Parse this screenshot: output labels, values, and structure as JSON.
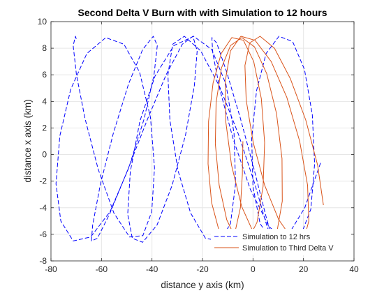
{
  "chart_data": {
    "type": "line",
    "title": "Second Delta V Burn with with Simulation to 12 hours",
    "xlabel": "distance y axis (km)",
    "ylabel": "distance x axis (km)",
    "xlim": [
      -80,
      40
    ],
    "ylim": [
      -8,
      10
    ],
    "xticks": [
      -80,
      -60,
      -40,
      -20,
      0,
      20,
      40
    ],
    "yticks": [
      -8,
      -6,
      -4,
      -2,
      0,
      2,
      4,
      6,
      8,
      10
    ],
    "xtick_labels": [
      "-80",
      "-60",
      "-40",
      "-20",
      "0",
      "20",
      "40"
    ],
    "ytick_labels": [
      "-8",
      "-6",
      "-4",
      "-2",
      "0",
      "2",
      "4",
      "6",
      "8",
      "10"
    ],
    "grid": true,
    "legend_position": "bottom-right",
    "series": [
      {
        "name": "Simulation to 12 hrs",
        "color": "#0000ff",
        "style": "dashed",
        "x": [
          -70.0,
          -70.3,
          -71.2,
          -69.9,
          -66.5,
          -61.3,
          -55.1,
          -48.9,
          -43.6,
          -40.1,
          -39.0,
          -40.6,
          -44.9,
          -51.1,
          -58.3,
          -65.8,
          -72.2,
          -76.5,
          -78.0,
          -76.1,
          -71.2,
          -64.3,
          -56.6,
          -49.2,
          -43.1,
          -39.2,
          -37.9,
          -39.5,
          -43.7,
          -49.3,
          -55.3,
          -60.4,
          -63.5,
          -64.0,
          -61.6,
          -56.6,
          -49.7,
          -41.9,
          -34.4,
          -28.0,
          -23.8,
          -22.1,
          -23.2,
          -26.7,
          -32.0,
          -38.0,
          -43.7,
          -47.8,
          -49.6,
          -48.6,
          -44.8,
          -38.8,
          -31.3,
          -23.5,
          -16.3,
          -10.7,
          -7.5,
          -6.9,
          -8.9,
          -13.1,
          -18.8,
          -24.7,
          -29.7,
          -32.9,
          -33.7,
          -31.8,
          -27.2,
          -20.7,
          -13.2,
          -5.7,
          0.7,
          5.4,
          7.7,
          7.4,
          4.8,
          0.3,
          -5.1,
          -10.4,
          -14.4,
          -16.3,
          -15.9,
          -13.0,
          -7.9,
          -1.1,
          6.3,
          13.3,
          19.1,
          22.9,
          24.4,
          23.5,
          20.4,
          15.7,
          10.3,
          5.2,
          1.4,
          -0.5,
          0.0,
          2.8,
          7.6,
          13.8,
          20.5,
          26.8
        ],
        "y": [
          8.7,
          8.9,
          8.2,
          6.0,
          2.7,
          -1.1,
          -4.4,
          -6.2,
          -6.1,
          -4.3,
          -1.0,
          2.8,
          6.2,
          8.3,
          8.8,
          7.6,
          4.9,
          1.4,
          -2.2,
          -5.0,
          -6.5,
          -6.2,
          -4.3,
          -1.0,
          2.7,
          6.0,
          8.2,
          8.9,
          7.9,
          5.3,
          1.6,
          -2.2,
          -5.3,
          -6.5,
          -6.3,
          -4.4,
          -1.2,
          2.6,
          6.0,
          8.3,
          8.9,
          7.8,
          5.2,
          1.5,
          -2.3,
          -5.3,
          -6.6,
          -6.3,
          -4.5,
          -1.3,
          2.5,
          5.9,
          8.2,
          8.9,
          7.9,
          5.3,
          1.6,
          -2.2,
          -5.2,
          -6.5,
          -6.3,
          -4.4,
          -1.2,
          2.6,
          6.0,
          8.3,
          8.9,
          7.8,
          5.1,
          1.5,
          -2.2,
          -5.3,
          -6.5,
          -6.2,
          -4.4,
          -1.0,
          2.8,
          6.2,
          8.4,
          8.8,
          7.6,
          4.8,
          1.2,
          -2.6,
          -5.4,
          -6.6,
          -6.0,
          -4.1,
          -0.7,
          3.0,
          6.4,
          8.5,
          8.9,
          7.6,
          4.8,
          1.2,
          -2.4,
          -5.2,
          -6.5,
          -6.1,
          -4.0,
          -0.6
        ]
      },
      {
        "name": "Simulation to Third Delta V",
        "color": "#d95319",
        "style": "solid",
        "x": [
          -4.0,
          -4.2,
          -5.0,
          -7.1,
          -10.2,
          -13.6,
          -16.4,
          -17.8,
          -17.6,
          -15.8,
          -12.6,
          -8.4,
          -3.8,
          0.3,
          3.3,
          4.6,
          4.0,
          1.6,
          -2.2,
          -6.4,
          -10.4,
          -13.4,
          -14.9,
          -14.6,
          -12.5,
          -8.9,
          -4.4,
          0.6,
          5.4,
          9.3,
          11.5,
          11.6,
          9.5,
          5.5,
          0.5,
          -4.5,
          -8.5,
          -10.8,
          -11.0,
          -8.9,
          -4.8,
          0.8,
          7.2,
          13.4,
          18.5,
          21.6,
          22.1,
          20.0,
          15.7,
          10.2,
          4.6,
          0.1,
          -2.7,
          -3.2,
          -1.3,
          2.8,
          8.5,
          14.8,
          20.9,
          25.6,
          27.9
        ],
        "y": [
          1.0,
          -1.5,
          -4.0,
          -5.8,
          -6.4,
          -5.6,
          -3.6,
          -0.7,
          2.5,
          5.4,
          7.6,
          8.8,
          8.6,
          7.0,
          4.2,
          0.9,
          -2.4,
          -5.1,
          -6.5,
          -6.5,
          -4.9,
          -2.3,
          0.8,
          3.9,
          6.5,
          8.2,
          8.8,
          8.1,
          6.1,
          3.1,
          -0.3,
          -3.5,
          -5.8,
          -6.7,
          -6.0,
          -3.9,
          -0.8,
          2.5,
          5.5,
          7.8,
          8.9,
          8.6,
          7.0,
          4.3,
          1.0,
          -2.3,
          -5.0,
          -6.5,
          -6.4,
          -4.9,
          -2.3,
          0.9,
          4.1,
          6.7,
          8.4,
          8.9,
          8.0,
          5.7,
          2.6,
          -0.8,
          -3.8
        ]
      }
    ]
  }
}
